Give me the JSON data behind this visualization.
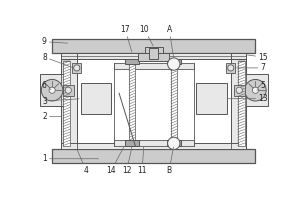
{
  "fig_width": 3.0,
  "fig_height": 2.0,
  "dpi": 100,
  "bg_color": "#ffffff",
  "lc": "#555555",
  "fill_light": "#e8e8e8",
  "fill_mid": "#cccccc",
  "fill_dark": "#aaaaaa",
  "fill_white": "#f5f5f5",
  "label_fs": 5.5,
  "label_color": "#222222",
  "arrow_color": "#666666"
}
